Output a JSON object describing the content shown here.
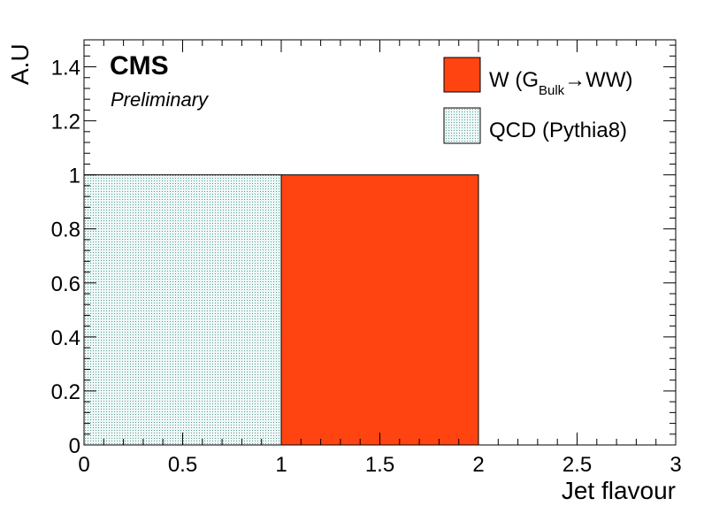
{
  "chart_data": {
    "type": "bar",
    "xlabel": "Jet flavour",
    "ylabel": "A.U",
    "xlim": [
      0,
      3
    ],
    "ylim": [
      0,
      1.5
    ],
    "x_ticks": [
      "0",
      "0.5",
      "1",
      "1.5",
      "2",
      "2.5",
      "3"
    ],
    "y_ticks": [
      "0",
      "0.2",
      "0.4",
      "0.6",
      "0.8",
      "1",
      "1.2",
      "1.4"
    ],
    "grid": false,
    "legend_position": "top-right",
    "series": [
      {
        "name": "W (G_Bulk→WW)",
        "name_parts": {
          "main": "W (G",
          "sub": "Bulk",
          "tail": "→WW)"
        },
        "color": "#ff4411",
        "fill": "solid",
        "bins": [
          {
            "x0": 1,
            "x1": 2,
            "value": 1.0
          }
        ]
      },
      {
        "name": "QCD (Pythia8)",
        "color": "#e8f6f6",
        "fill": "dotted",
        "bins": [
          {
            "x0": 0,
            "x1": 1,
            "value": 1.0
          }
        ]
      }
    ],
    "annotations": {
      "experiment": "CMS",
      "status": "Preliminary"
    }
  }
}
